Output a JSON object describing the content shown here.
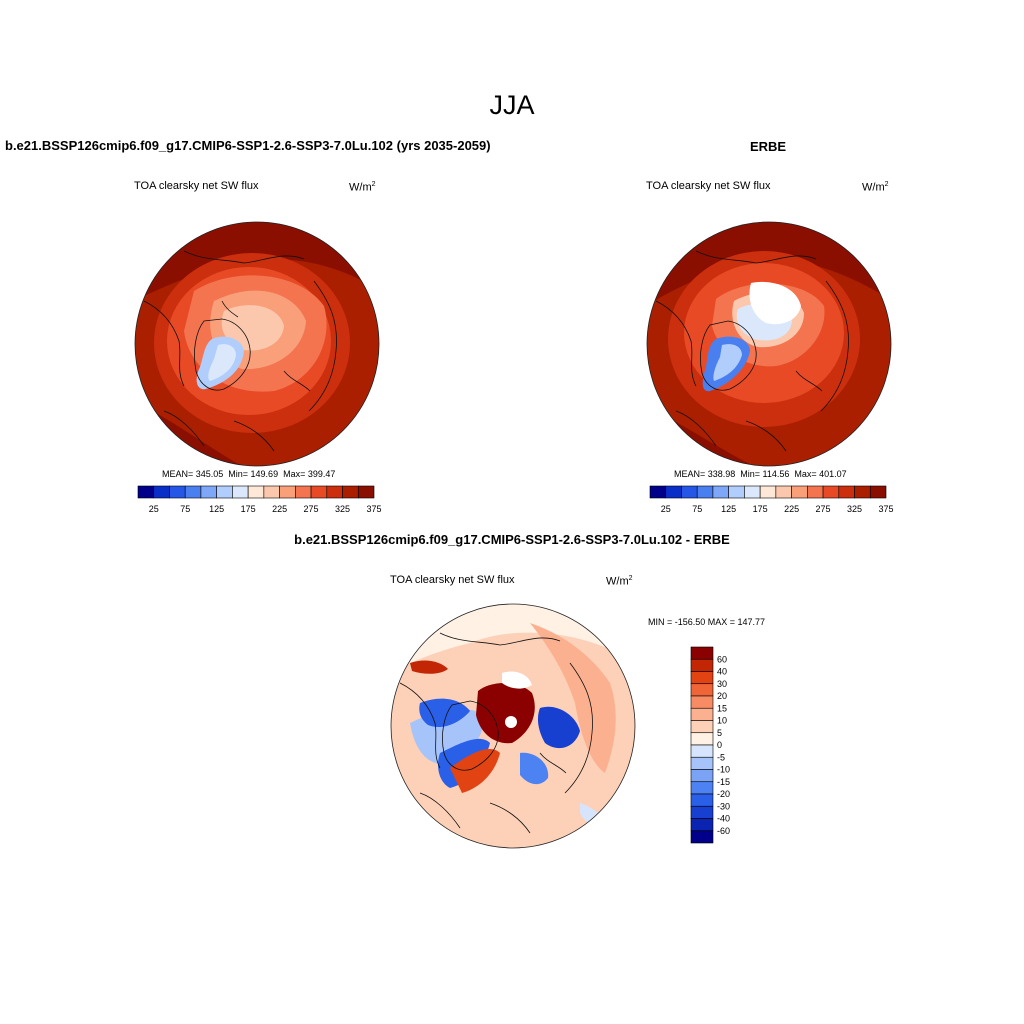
{
  "main_title": "JJA",
  "colors": {
    "abs_scale": [
      "#00008b",
      "#0a2fc8",
      "#2656e6",
      "#4a7ff0",
      "#7ea8f7",
      "#b0cdfb",
      "#dbe8fc",
      "#fde7d7",
      "#fcc8ad",
      "#f9a07b",
      "#f4744f",
      "#e84a26",
      "#cc2f0d",
      "#a91f00",
      "#8b0f00"
    ],
    "diff_scale": [
      "#00008b",
      "#0a23b0",
      "#1740d1",
      "#2a5fe8",
      "#4d82f2",
      "#7aa3f6",
      "#a7c4fa",
      "#d6e5fb",
      "#fff1e4",
      "#fdd0b8",
      "#fbb090",
      "#f78b63",
      "#f06537",
      "#e24313",
      "#c22604",
      "#8b0000"
    ]
  },
  "panels": {
    "model": {
      "title": "b.e21.BSSP126cmip6.f09_g17.CMIP6-SSP1-2.6-SSP3-7.0Lu.102 (yrs 2035-2059)",
      "variable": "TOA clearsky net SW flux",
      "units_base": "W/m",
      "units_exp": "2",
      "stats_text": "MEAN= 345.05  Min= 149.69  Max= 399.47",
      "stats": {
        "mean": 345.05,
        "min": 149.69,
        "max": 399.47
      }
    },
    "obs": {
      "title": "ERBE",
      "variable": "TOA clearsky net SW flux",
      "units_base": "W/m",
      "units_exp": "2",
      "stats_text": "MEAN= 338.98  Min= 114.56  Max= 401.07",
      "stats": {
        "mean": 338.98,
        "min": 114.56,
        "max": 401.07
      }
    },
    "diff": {
      "title": "b.e21.BSSP126cmip6.f09_g17.CMIP6-SSP1-2.6-SSP3-7.0Lu.102 - ERBE",
      "variable": "TOA clearsky net SW flux",
      "units_base": "W/m",
      "units_exp": "2",
      "minmax_text": "MIN = -156.50 MAX = 147.77",
      "stats": {
        "min": -156.5,
        "max": 147.77
      }
    }
  },
  "colorbar_abs": {
    "ticks": [
      "25",
      "75",
      "125",
      "175",
      "225",
      "275",
      "325",
      "375"
    ]
  },
  "colorbar_diff": {
    "ticks": [
      "60",
      "40",
      "30",
      "20",
      "15",
      "10",
      "5",
      "0",
      "-5",
      "-10",
      "-15",
      "-20",
      "-30",
      "-40",
      "-60"
    ]
  }
}
